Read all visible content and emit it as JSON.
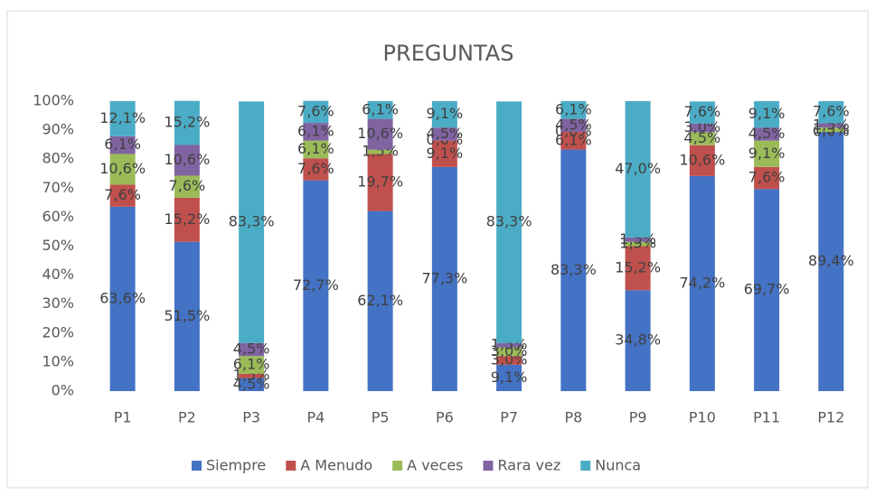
{
  "chart_data": {
    "type": "stacked_bar_percent",
    "title": "PREGUNTAS",
    "categories": [
      "P1",
      "P2",
      "P3",
      "P4",
      "P5",
      "P6",
      "P7",
      "P8",
      "P9",
      "P10",
      "P11",
      "P12"
    ],
    "series": [
      {
        "name": "Siempre",
        "color": "#4472c4",
        "values": [
          63.6,
          51.5,
          4.5,
          72.7,
          62.1,
          77.3,
          9.1,
          83.3,
          34.8,
          74.2,
          69.7,
          89.4
        ],
        "value_labels": [
          "63,6%",
          "51,5%",
          "4,5%",
          "72,7%",
          "62,1%",
          "77,3%",
          "9,1%",
          "83,3%",
          "34,8%",
          "74,2%",
          "69,7%",
          "89,4%"
        ]
      },
      {
        "name": "A Menudo",
        "color": "#c0504d",
        "values": [
          7.6,
          15.2,
          1.5,
          7.6,
          19.7,
          9.1,
          3.0,
          6.1,
          15.2,
          10.6,
          7.6,
          0.0
        ],
        "value_labels": [
          "7,6%",
          "15,2%",
          "1,5%",
          "7,6%",
          "19,7%",
          "9,1%",
          "3,0%",
          "6,1%",
          "15,2%",
          "10,6%",
          "7,6%",
          "0,0%"
        ]
      },
      {
        "name": "A veces",
        "color": "#9bbb59",
        "values": [
          10.6,
          7.6,
          6.1,
          6.1,
          1.5,
          0.0,
          3.0,
          0.0,
          1.5,
          4.5,
          9.1,
          1.5
        ],
        "value_labels": [
          "10,6%",
          "7,6%",
          "6,1%",
          "6,1%",
          "1,5%",
          "0,0%",
          "3,0%",
          "0,0%",
          "1,5%",
          "4,5%",
          "9,1%",
          "1,5%"
        ]
      },
      {
        "name": "Rara vez",
        "color": "#8064a2",
        "values": [
          6.1,
          10.6,
          4.5,
          6.1,
          10.6,
          4.5,
          1.5,
          4.5,
          1.5,
          3.0,
          4.5,
          1.5
        ],
        "value_labels": [
          "6,1%",
          "10,6%",
          "4,5%",
          "6,1%",
          "10,6%",
          "4,5%",
          "1,5%",
          "4,5%",
          "1,5%",
          "3,0%",
          "4,5%",
          "1,5%"
        ]
      },
      {
        "name": "Nunca",
        "color": "#4bacc6",
        "values": [
          12.1,
          15.2,
          83.3,
          7.6,
          6.1,
          9.1,
          83.3,
          6.1,
          47.0,
          7.6,
          9.1,
          7.6
        ],
        "value_labels": [
          "12,1%",
          "15,2%",
          "83,3%",
          "7,6%",
          "6,1%",
          "9,1%",
          "83,3%",
          "6,1%",
          "47,0%",
          "7,6%",
          "9,1%",
          "7,6%"
        ]
      }
    ],
    "ylim": [
      0,
      100
    ],
    "yticks": [
      {
        "value": 0,
        "label": "0%"
      },
      {
        "value": 10,
        "label": "10%"
      },
      {
        "value": 20,
        "label": "20%"
      },
      {
        "value": 30,
        "label": "30%"
      },
      {
        "value": 40,
        "label": "40%"
      },
      {
        "value": 50,
        "label": "50%"
      },
      {
        "value": 60,
        "label": "60%"
      },
      {
        "value": 70,
        "label": "70%"
      },
      {
        "value": 80,
        "label": "80%"
      },
      {
        "value": 90,
        "label": "90%"
      },
      {
        "value": 100,
        "label": "100%"
      }
    ],
    "grid": false,
    "legend": "bottom"
  }
}
